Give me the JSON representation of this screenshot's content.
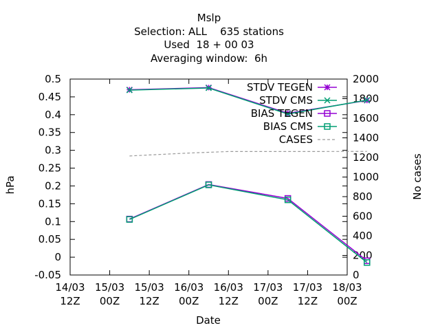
{
  "chart_data": {
    "type": "line",
    "title_lines": [
      "Mslp",
      "Selection: ALL    635 stations",
      "Used  18 + 00 03",
      "Averaging window:  6h"
    ],
    "xlabel": "Date",
    "ylabel": "hPa",
    "y2label": "No cases",
    "x_ticks": [
      {
        "line1": "14/03",
        "line2": "12Z"
      },
      {
        "line1": "15/03",
        "line2": "00Z"
      },
      {
        "line1": "15/03",
        "line2": "12Z"
      },
      {
        "line1": "16/03",
        "line2": "00Z"
      },
      {
        "line1": "16/03",
        "line2": "12Z"
      },
      {
        "line1": "17/03",
        "line2": "00Z"
      },
      {
        "line1": "17/03",
        "line2": "12Z"
      },
      {
        "line1": "18/03",
        "line2": "00Z"
      }
    ],
    "x_tick_hours": [
      0,
      12,
      24,
      36,
      48,
      60,
      72,
      84
    ],
    "xlim_hours": [
      0,
      84
    ],
    "ylim": [
      -0.05,
      0.5
    ],
    "y_ticks": [
      "-0.05",
      "0",
      "0.05",
      "0.1",
      "0.15",
      "0.2",
      "0.25",
      "0.3",
      "0.35",
      "0.4",
      "0.45",
      "0.5"
    ],
    "y2lim": [
      0,
      2000
    ],
    "y2_ticks": [
      "0",
      "200",
      "400",
      "600",
      "800",
      "1000",
      "1200",
      "1400",
      "1600",
      "1800",
      "2000"
    ],
    "x_hours": [
      18,
      42,
      66,
      90
    ],
    "series": [
      {
        "name": "STDV TEGEN",
        "axis": "y",
        "marker": "star",
        "color": "#9400d3",
        "values": [
          0.47,
          0.476,
          0.404,
          0.44
        ]
      },
      {
        "name": "STDV CMS",
        "axis": "y",
        "marker": "cross",
        "color": "#009e73",
        "values": [
          0.469,
          0.475,
          0.402,
          0.441
        ]
      },
      {
        "name": "BIAS TEGEN",
        "axis": "y",
        "marker": "square",
        "color": "#9400d3",
        "values": [
          0.107,
          0.204,
          0.165,
          -0.01
        ]
      },
      {
        "name": "BIAS CMS",
        "axis": "y",
        "marker": "square",
        "color": "#009e73",
        "values": [
          0.106,
          0.203,
          0.161,
          -0.015
        ]
      },
      {
        "name": "CASES",
        "axis": "y2",
        "marker": "none",
        "color": "#999999",
        "dashed": true,
        "x_hours": [
          18,
          24,
          36,
          48,
          60,
          72,
          90
        ],
        "values": [
          1215,
          1225,
          1245,
          1260,
          1260,
          1260,
          1262
        ]
      }
    ],
    "legend_position": "top-right",
    "grid": false
  }
}
